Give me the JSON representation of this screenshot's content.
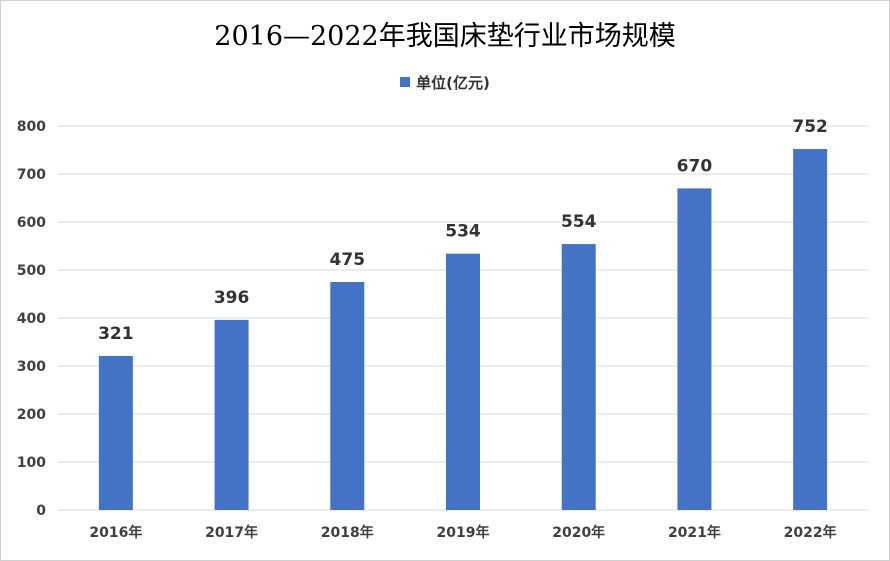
{
  "chart_data": {
    "type": "bar",
    "title": "2016—2022年我国床垫行业市场规模",
    "categories": [
      "2016年",
      "2017年",
      "2018年",
      "2019年",
      "2020年",
      "2021年",
      "2022年"
    ],
    "series": [
      {
        "name": "单位(亿元)",
        "values": [
          321,
          396,
          475,
          534,
          554,
          670,
          752
        ]
      }
    ],
    "ylim": [
      0,
      800
    ],
    "yticks": [
      0,
      100,
      200,
      300,
      400,
      500,
      600,
      700,
      800
    ],
    "grid": true,
    "legend": "top-center",
    "data_labels": true,
    "bar_color": "#4472C4",
    "grid_color": "#d9d9d9"
  }
}
